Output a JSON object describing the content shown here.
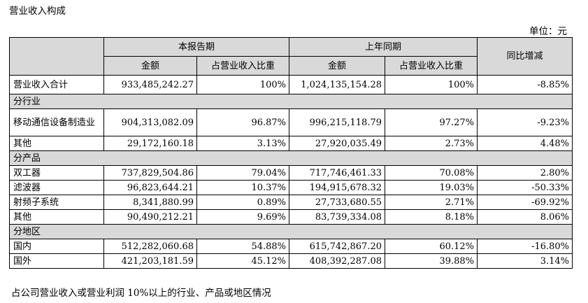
{
  "heading": "营业收入构成",
  "unit": "单位：元",
  "header": {
    "current_period": "本报告期",
    "prior_period": "上年同期",
    "amount": "金额",
    "share": "占营业收入比重",
    "yoy": "同比增减"
  },
  "total": {
    "label": "营业收入合计",
    "cur_amount": "933,485,242.27",
    "cur_share": "100%",
    "prev_amount": "1,024,135,154.28",
    "prev_share": "100%",
    "yoy": "-8.85%"
  },
  "by_industry": {
    "title": "分行业",
    "rows": [
      {
        "label": "移动通信设备制造业",
        "cur_amount": "904,313,082.09",
        "cur_share": "96.87%",
        "prev_amount": "996,215,118.79",
        "prev_share": "97.27%",
        "yoy": "-9.23%"
      },
      {
        "label": "其他",
        "cur_amount": "29,172,160.18",
        "cur_share": "3.13%",
        "prev_amount": "27,920,035.49",
        "prev_share": "2.73%",
        "yoy": "4.48%"
      }
    ]
  },
  "by_product": {
    "title": "分产品",
    "rows": [
      {
        "label": "双工器",
        "cur_amount": "737,829,504.86",
        "cur_share": "79.04%",
        "prev_amount": "717,746,461.33",
        "prev_share": "70.08%",
        "yoy": "2.80%"
      },
      {
        "label": "滤波器",
        "cur_amount": "96,823,644.21",
        "cur_share": "10.37%",
        "prev_amount": "194,915,678.32",
        "prev_share": "19.03%",
        "yoy": "-50.33%"
      },
      {
        "label": "射频子系统",
        "cur_amount": "8,341,880.99",
        "cur_share": "0.89%",
        "prev_amount": "27,733,680.55",
        "prev_share": "2.71%",
        "yoy": "-69.92%"
      },
      {
        "label": "其他",
        "cur_amount": "90,490,212.21",
        "cur_share": "9.69%",
        "prev_amount": "83,739,334.08",
        "prev_share": "8.18%",
        "yoy": "8.06%"
      }
    ]
  },
  "by_region": {
    "title": "分地区",
    "rows": [
      {
        "label": "国内",
        "cur_amount": "512,282,060.68",
        "cur_share": "54.88%",
        "prev_amount": "615,742,867.20",
        "prev_share": "60.12%",
        "yoy": "-16.80%"
      },
      {
        "label": "国外",
        "cur_amount": "421,203,181.59",
        "cur_share": "45.12%",
        "prev_amount": "408,392,287.08",
        "prev_share": "39.88%",
        "yoy": "3.14%"
      }
    ]
  },
  "footnote": "占公司营业收入或营业利润 10%以上的行业、产品或地区情况"
}
